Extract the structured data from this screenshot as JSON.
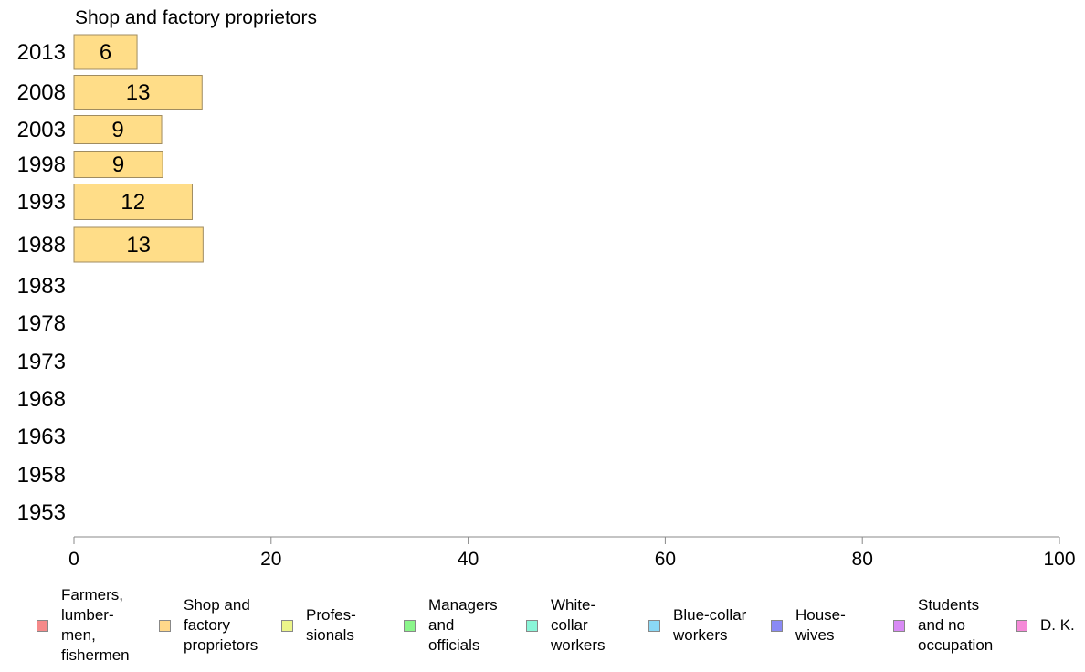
{
  "chart_data": {
    "type": "bar",
    "orientation": "horizontal",
    "title": "Shop and factory proprietors",
    "categories": [
      "2013",
      "2008",
      "2003",
      "1998",
      "1993",
      "1988",
      "1983",
      "1978",
      "1973",
      "1968",
      "1963",
      "1958",
      "1953"
    ],
    "series": [
      {
        "name": "Shop and factory proprietors",
        "color": "#ffdd88",
        "values": [
          6.4,
          13.0,
          8.9,
          9.0,
          12.0,
          13.1,
          null,
          null,
          null,
          null,
          null,
          null,
          null
        ],
        "labels": [
          "6",
          "13",
          "9",
          "9",
          "12",
          "13",
          "",
          "",
          "",
          "",
          "",
          "",
          ""
        ]
      }
    ],
    "xlim": [
      0,
      100
    ],
    "xticks": [
      "0",
      "20",
      "40",
      "60",
      "80",
      "100"
    ],
    "grid": false,
    "legend_position": "bottom"
  },
  "legend": [
    {
      "label": "Farmers,\nlumber-\nmen,\nfishermen",
      "color": "#f58a8a"
    },
    {
      "label": "Shop and\nfactory\nproprietors",
      "color": "#ffd88a"
    },
    {
      "label": "Profes-\nsionals",
      "color": "#ecf58a"
    },
    {
      "label": "Managers\nand\nofficials",
      "color": "#8af58a"
    },
    {
      "label": "White-\ncollar\nworkers",
      "color": "#8af5d8"
    },
    {
      "label": "Blue-collar\nworkers",
      "color": "#8ad8f5"
    },
    {
      "label": "House-\nwives",
      "color": "#8a8af5"
    },
    {
      "label": "Students\nand no\noccupation",
      "color": "#d88af5"
    },
    {
      "label": "D. K.",
      "color": "#f58ad8"
    }
  ]
}
